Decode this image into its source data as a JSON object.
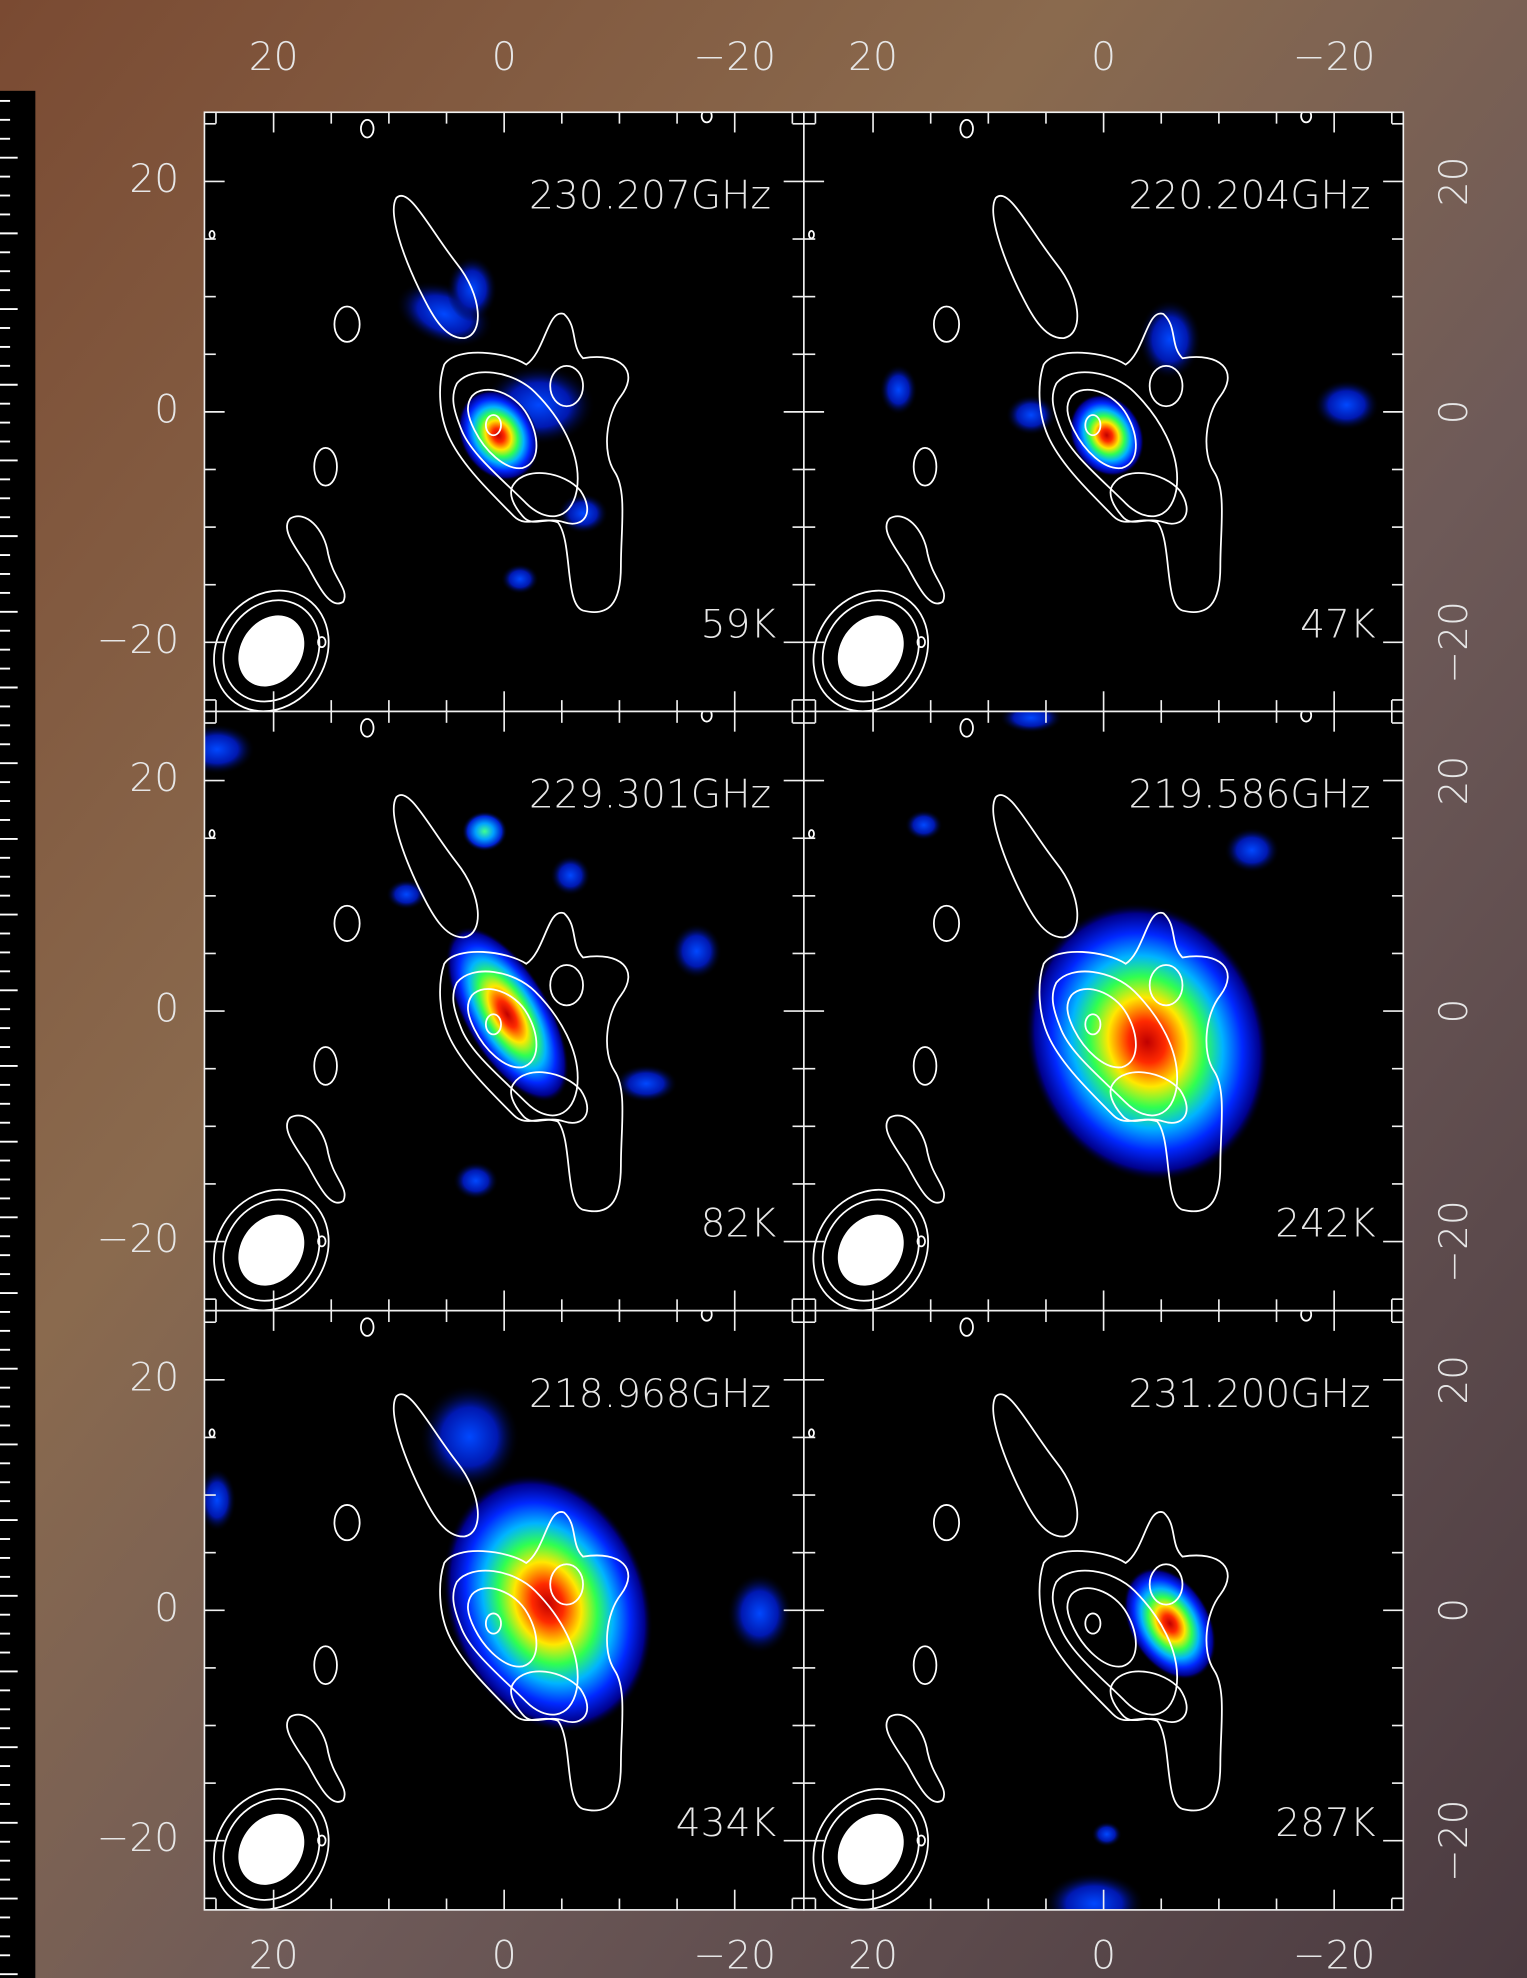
{
  "chart_data": {
    "type": "image-grid",
    "xlim": [
      26,
      -26
    ],
    "ylim": [
      -26,
      26
    ],
    "xticks": [
      20,
      0,
      {
        "value": -20,
        "label": "−20"
      }
    ],
    "yticks": [
      20,
      0,
      {
        "value": -20,
        "label": "−20"
      }
    ],
    "minor_ticks": [
      -25,
      -15,
      -10,
      -5,
      5,
      10,
      15,
      25
    ],
    "panels": [
      {
        "title": "230.207GHz",
        "annotation": "59K"
      },
      {
        "title": "220.204GHz",
        "annotation": "47K"
      },
      {
        "title": "229.301GHz",
        "annotation": "82K"
      },
      {
        "title": "219.586GHz",
        "annotation": "242K"
      },
      {
        "title": "218.968GHz",
        "annotation": "434K"
      },
      {
        "title": "231.200GHz",
        "annotation": "287K"
      }
    ]
  }
}
